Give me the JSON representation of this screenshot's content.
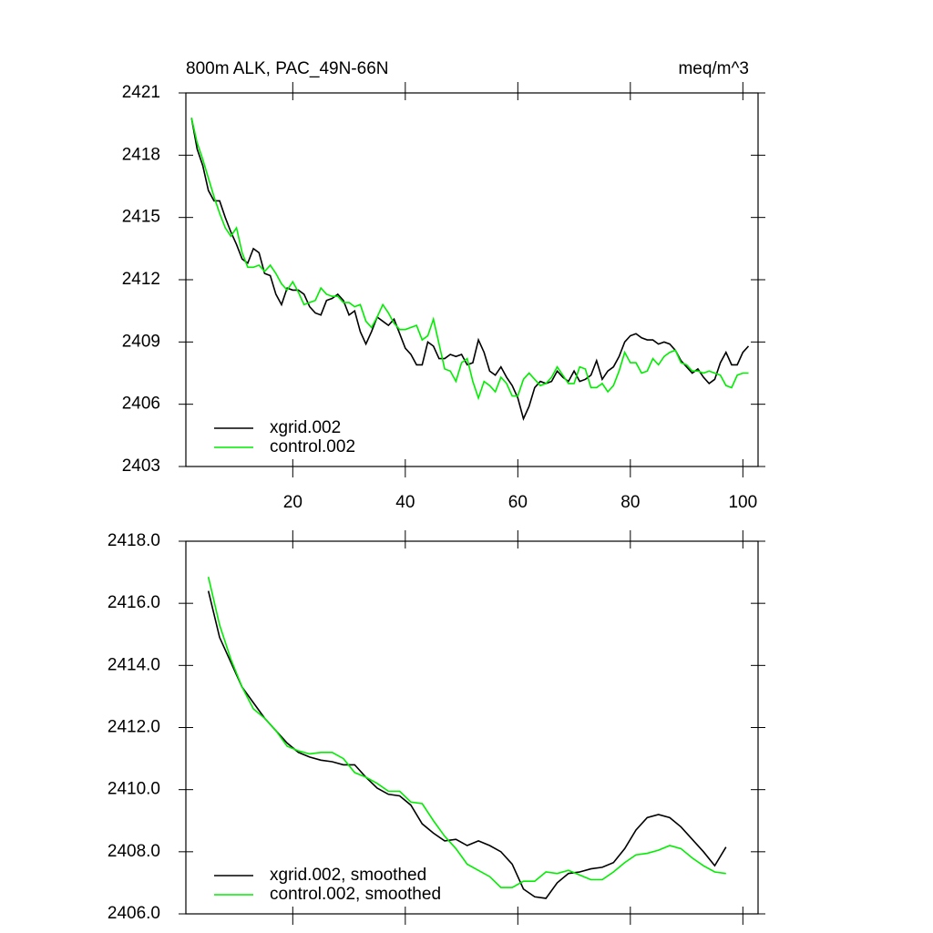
{
  "chart_data": [
    {
      "type": "line",
      "title": "800m ALK, PAC_49N-66N",
      "units": "meq/m^3",
      "xlim": [
        1,
        102.7
      ],
      "xticks": [
        20,
        40,
        60,
        80,
        100
      ],
      "ylim": [
        2403,
        2421
      ],
      "yticks": [
        2403,
        2406,
        2409,
        2412,
        2415,
        2418,
        2421
      ],
      "x": [
        2,
        3,
        4,
        5,
        6,
        7,
        8,
        9,
        10,
        11,
        12,
        13,
        14,
        15,
        16,
        17,
        18,
        19,
        20,
        21,
        22,
        23,
        24,
        25,
        26,
        27,
        28,
        29,
        30,
        31,
        32,
        33,
        34,
        35,
        36,
        37,
        38,
        39,
        40,
        41,
        42,
        43,
        44,
        45,
        46,
        47,
        48,
        49,
        50,
        51,
        52,
        53,
        54,
        55,
        56,
        57,
        58,
        59,
        60,
        61,
        62,
        63,
        64,
        65,
        66,
        67,
        68,
        69,
        70,
        71,
        72,
        73,
        74,
        75,
        76,
        77,
        78,
        79,
        80,
        81,
        82,
        83,
        84,
        85,
        86,
        87,
        88,
        89,
        90,
        91,
        92,
        93,
        94,
        95,
        96,
        97,
        98,
        99,
        100,
        101
      ],
      "series": [
        {
          "name": "xgrid.002",
          "color": "#000000",
          "values": [
            2419.8,
            2418.3,
            2417.5,
            2416.3,
            2415.8,
            2415.8,
            2415.0,
            2414.3,
            2413.7,
            2413.0,
            2412.8,
            2413.5,
            2413.3,
            2412.3,
            2412.2,
            2411.3,
            2410.8,
            2411.6,
            2411.5,
            2411.5,
            2411.3,
            2410.7,
            2410.4,
            2410.3,
            2411.0,
            2411.1,
            2411.3,
            2411.0,
            2410.3,
            2410.5,
            2409.5,
            2408.9,
            2409.5,
            2410.2,
            2410.0,
            2409.8,
            2410.1,
            2409.4,
            2408.7,
            2408.4,
            2407.9,
            2407.9,
            2409.0,
            2408.8,
            2408.2,
            2408.2,
            2408.4,
            2408.3,
            2408.4,
            2407.9,
            2408.0,
            2409.1,
            2408.5,
            2407.6,
            2407.4,
            2407.8,
            2407.3,
            2406.9,
            2406.3,
            2405.3,
            2405.9,
            2406.8,
            2407.1,
            2407.0,
            2407.1,
            2407.6,
            2407.3,
            2407.1,
            2407.6,
            2407.1,
            2407.2,
            2407.4,
            2408.1,
            2407.2,
            2407.6,
            2407.8,
            2408.3,
            2409.0,
            2409.3,
            2409.4,
            2409.2,
            2409.1,
            2409.1,
            2408.9,
            2409.0,
            2408.9,
            2408.6,
            2408.1,
            2407.8,
            2407.5,
            2407.7,
            2407.3,
            2407.0,
            2407.2,
            2408.0,
            2408.5,
            2407.9,
            2407.9,
            2408.5,
            2408.8
          ]
        },
        {
          "name": "control.002",
          "color": "#00ee00",
          "values": [
            2419.8,
            2418.6,
            2417.8,
            2416.9,
            2416.0,
            2415.2,
            2414.5,
            2414.1,
            2414.5,
            2413.3,
            2412.6,
            2412.6,
            2412.7,
            2412.4,
            2412.7,
            2412.3,
            2411.8,
            2411.5,
            2411.9,
            2411.4,
            2410.8,
            2410.9,
            2411.0,
            2411.6,
            2411.3,
            2411.2,
            2411.2,
            2410.9,
            2410.9,
            2410.7,
            2410.8,
            2410.0,
            2409.7,
            2410.2,
            2410.8,
            2410.4,
            2409.9,
            2409.6,
            2409.6,
            2409.7,
            2409.8,
            2409.1,
            2409.3,
            2410.1,
            2408.9,
            2407.7,
            2407.6,
            2407.1,
            2408.0,
            2408.2,
            2407.1,
            2406.3,
            2407.1,
            2406.9,
            2406.6,
            2407.3,
            2407.0,
            2406.4,
            2406.4,
            2407.2,
            2407.5,
            2407.2,
            2406.9,
            2407.0,
            2407.3,
            2407.8,
            2407.4,
            2407.0,
            2407.0,
            2407.8,
            2407.7,
            2406.8,
            2406.8,
            2407.0,
            2406.6,
            2406.9,
            2407.6,
            2408.5,
            2408.0,
            2408.0,
            2407.5,
            2407.6,
            2408.2,
            2407.9,
            2408.3,
            2408.5,
            2408.6,
            2408.0,
            2407.9,
            2407.6,
            2407.6,
            2407.5,
            2407.6,
            2407.5,
            2407.4,
            2406.9,
            2406.8,
            2407.4,
            2407.5,
            2407.5
          ]
        }
      ]
    },
    {
      "type": "line",
      "xlim": [
        1,
        102.7
      ],
      "xticks": [
        20,
        40,
        60,
        80,
        100
      ],
      "ylim": [
        2406,
        2418
      ],
      "yticks": [
        {
          "value": 2406,
          "label": "2406.0"
        },
        {
          "value": 2408,
          "label": "2408.0"
        },
        {
          "value": 2410,
          "label": "2410.0"
        },
        {
          "value": 2412,
          "label": "2412.0"
        },
        {
          "value": 2414,
          "label": "2414.0"
        },
        {
          "value": 2416,
          "label": "2416.0"
        },
        {
          "value": 2418,
          "label": "2418.0"
        }
      ],
      "x": [
        5,
        7,
        9,
        11,
        13,
        15,
        17,
        19,
        21,
        23,
        25,
        27,
        29,
        31,
        33,
        35,
        37,
        39,
        41,
        43,
        45,
        47,
        49,
        51,
        53,
        55,
        57,
        59,
        61,
        63,
        65,
        67,
        69,
        71,
        73,
        75,
        77,
        79,
        81,
        83,
        85,
        87,
        89,
        91,
        93,
        95,
        97
      ],
      "series": [
        {
          "name": "xgrid.002, smoothed",
          "color": "#000000",
          "values": [
            2416.4,
            2414.9,
            2414.1,
            2413.3,
            2412.8,
            2412.3,
            2411.9,
            2411.5,
            2411.2,
            2411.05,
            2410.95,
            2410.9,
            2410.8,
            2410.8,
            2410.4,
            2410.05,
            2409.85,
            2409.8,
            2409.5,
            2408.9,
            2408.6,
            2408.35,
            2408.4,
            2408.2,
            2408.35,
            2408.2,
            2408.0,
            2407.6,
            2406.8,
            2406.55,
            2406.5,
            2407.0,
            2407.3,
            2407.35,
            2407.45,
            2407.5,
            2407.65,
            2408.1,
            2408.7,
            2409.1,
            2409.2,
            2409.1,
            2408.8,
            2408.4,
            2408.0,
            2407.55,
            2408.15
          ]
        },
        {
          "name": "control.002, smoothed",
          "color": "#00ee00",
          "values": [
            2416.85,
            2415.3,
            2414.2,
            2413.3,
            2412.6,
            2412.3,
            2411.9,
            2411.4,
            2411.25,
            2411.15,
            2411.2,
            2411.2,
            2411.0,
            2410.55,
            2410.4,
            2410.2,
            2409.95,
            2409.95,
            2409.6,
            2409.55,
            2409.0,
            2408.5,
            2408.1,
            2407.6,
            2407.4,
            2407.2,
            2406.85,
            2406.85,
            2407.05,
            2407.05,
            2407.35,
            2407.3,
            2407.4,
            2407.25,
            2407.1,
            2407.1,
            2407.35,
            2407.65,
            2407.9,
            2407.95,
            2408.05,
            2408.2,
            2408.1,
            2407.8,
            2407.55,
            2407.35,
            2407.3
          ]
        }
      ]
    }
  ]
}
